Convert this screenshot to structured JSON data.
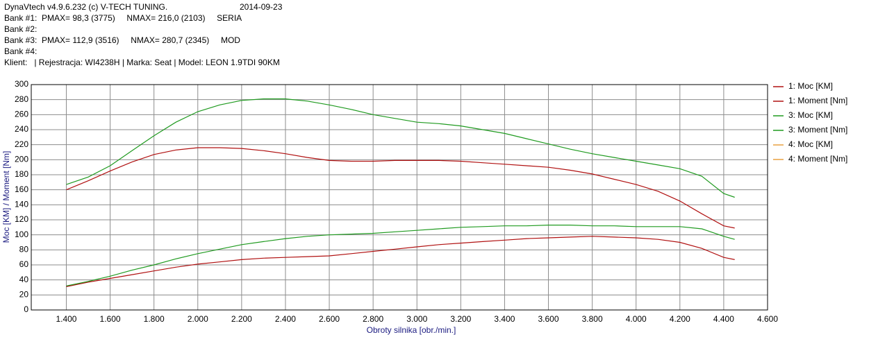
{
  "header": {
    "title": "DynaVtech v4.9.6.232 (c) V-TECH TUNING.",
    "date": "2014-09-23",
    "lines": [
      "Bank #1:  PMAX= 98,3 (3775)     NMAX= 216,0 (2103)     SERIA",
      "Bank #2:",
      "Bank #3:  PMAX= 112,9 (3516)     NMAX= 280,7 (2345)     MOD",
      "Bank #4:",
      "Klient:   | Rejestracja: WI4238H | Marka: Seat | Model: LEON 1.9TDI 90KM"
    ]
  },
  "chart_data": {
    "type": "line",
    "xlabel": "Obroty silnika [obr./min.]",
    "ylabel": "Moc [KM] / Moment [Nm]",
    "x": [
      1400,
      1500,
      1600,
      1700,
      1800,
      1900,
      2000,
      2100,
      2200,
      2300,
      2400,
      2500,
      2600,
      2700,
      2800,
      2900,
      3000,
      3100,
      3200,
      3300,
      3400,
      3500,
      3600,
      3700,
      3800,
      3900,
      4000,
      4100,
      4200,
      4300,
      4400,
      4450
    ],
    "series": [
      {
        "name": "1: Moc [KM]",
        "color": "#b01010",
        "values": [
          31,
          37,
          42,
          47,
          52,
          57,
          61,
          64,
          67,
          69,
          70,
          71,
          72,
          75,
          78,
          81,
          84,
          87,
          89,
          91,
          93,
          95,
          96,
          97,
          98,
          97,
          96,
          94,
          90,
          82,
          70,
          67
        ]
      },
      {
        "name": "1: Moment [Nm]",
        "color": "#b01010",
        "values": [
          160,
          172,
          185,
          197,
          207,
          213,
          216,
          216,
          215,
          212,
          208,
          203,
          199,
          198,
          198,
          199,
          199,
          199,
          198,
          196,
          194,
          192,
          190,
          186,
          181,
          174,
          167,
          158,
          145,
          128,
          112,
          109
        ]
      },
      {
        "name": "3: Moc [KM]",
        "color": "#1f9a1f",
        "values": [
          32,
          38,
          45,
          53,
          60,
          68,
          75,
          81,
          87,
          91,
          95,
          98,
          100,
          101,
          102,
          104,
          106,
          108,
          110,
          111,
          112,
          112,
          113,
          113,
          112,
          112,
          111,
          111,
          111,
          108,
          98,
          94
        ]
      },
      {
        "name": "3: Moment [Nm]",
        "color": "#1f9a1f",
        "values": [
          167,
          177,
          192,
          212,
          232,
          250,
          264,
          273,
          279,
          281,
          281,
          278,
          273,
          267,
          260,
          255,
          250,
          248,
          245,
          240,
          235,
          228,
          221,
          214,
          208,
          203,
          198,
          193,
          188,
          178,
          155,
          150
        ]
      },
      {
        "name": "4: Moc [KM]",
        "color": "#e8a040",
        "values": [
          null,
          null,
          null,
          null,
          null,
          null,
          null,
          null,
          null,
          null,
          null,
          null,
          null,
          null,
          null,
          null,
          null,
          null,
          null,
          null,
          null,
          null,
          null,
          null,
          null,
          null,
          null,
          null,
          null,
          null,
          null,
          null
        ]
      },
      {
        "name": "4: Moment [Nm]",
        "color": "#e8a040",
        "values": [
          null,
          null,
          null,
          null,
          null,
          null,
          null,
          null,
          null,
          null,
          null,
          null,
          null,
          null,
          null,
          null,
          null,
          null,
          null,
          null,
          null,
          null,
          null,
          null,
          null,
          null,
          null,
          null,
          null,
          null,
          null,
          null
        ]
      }
    ],
    "xlim": [
      1240,
      4600
    ],
    "ylim": [
      0,
      300
    ],
    "xticks": [
      {
        "value": 1400,
        "label": "1.400"
      },
      {
        "value": 1600,
        "label": "1.600"
      },
      {
        "value": 1800,
        "label": "1.800"
      },
      {
        "value": 2000,
        "label": "2.000"
      },
      {
        "value": 2200,
        "label": "2.200"
      },
      {
        "value": 2400,
        "label": "2.400"
      },
      {
        "value": 2600,
        "label": "2.600"
      },
      {
        "value": 2800,
        "label": "2.800"
      },
      {
        "value": 3000,
        "label": "3.000"
      },
      {
        "value": 3200,
        "label": "3.200"
      },
      {
        "value": 3400,
        "label": "3.400"
      },
      {
        "value": 3600,
        "label": "3.600"
      },
      {
        "value": 3800,
        "label": "3.800"
      },
      {
        "value": 4000,
        "label": "4.000"
      },
      {
        "value": 4200,
        "label": "4.200"
      },
      {
        "value": 4400,
        "label": "4.400"
      },
      {
        "value": 4600,
        "label": "4.600"
      }
    ],
    "yticks": [
      0,
      20,
      40,
      60,
      80,
      100,
      120,
      140,
      160,
      180,
      200,
      220,
      240,
      260,
      280,
      300
    ],
    "grid": true,
    "legend": "right"
  }
}
